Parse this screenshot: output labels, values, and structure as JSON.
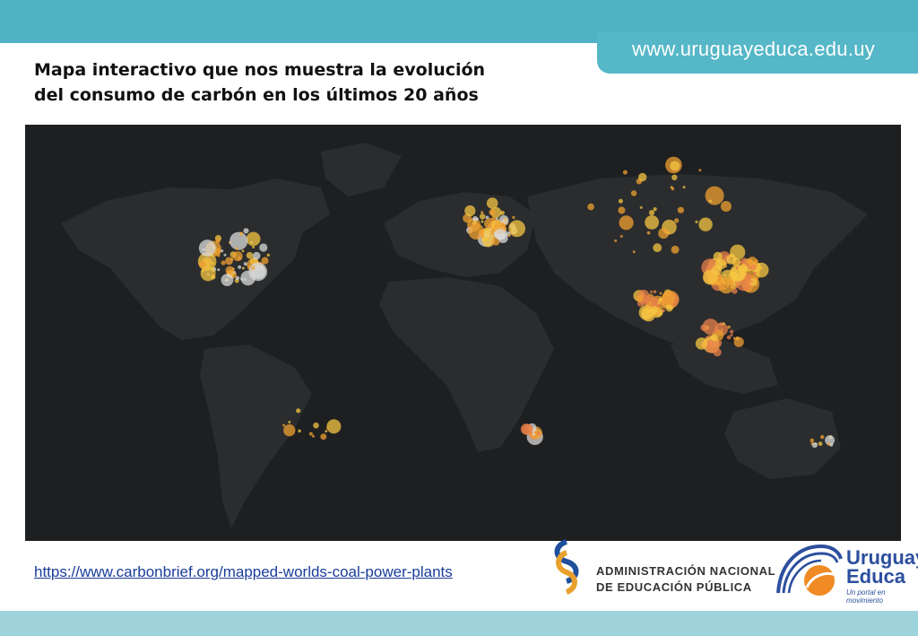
{
  "header": {
    "url": "www.uruguayeduca.edu.uy",
    "title_line1": "Mapa interactivo que nos muestra la evolución",
    "title_line2": "del consumo de carbón en los últimos 20 años"
  },
  "footer": {
    "link": "https://www.carbonbrief.org/mapped-worlds-coal-power-plants",
    "anep_line1": "ADMINISTRACIÓN NACIONAL",
    "anep_line2": "DE EDUCACIÓN PÚBLICA",
    "ue_line1": "Uruguay",
    "ue_line2": "Educa",
    "ue_tagline": "Un portal en movimiento"
  },
  "map": {
    "background_color": "#1e1f21",
    "land_color": "#2b2c2e",
    "dot_colors": [
      "#f5c542",
      "#f0a030",
      "#e8804a",
      "#d9d9d9"
    ],
    "clusters": [
      {
        "region": "north-america",
        "lon": -95,
        "lat": 38,
        "spread": 12,
        "count": 70,
        "palette": [
          0,
          1,
          3
        ]
      },
      {
        "region": "europe",
        "lon": 12,
        "lat": 50,
        "spread": 9,
        "count": 55,
        "palette": [
          0,
          1,
          3
        ]
      },
      {
        "region": "china",
        "lon": 112,
        "lat": 32,
        "spread": 9,
        "count": 80,
        "palette": [
          1,
          2,
          0
        ]
      },
      {
        "region": "india",
        "lon": 79,
        "lat": 21,
        "spread": 6,
        "count": 45,
        "palette": [
          1,
          2,
          0
        ]
      },
      {
        "region": "southeast-asia",
        "lon": 105,
        "lat": 8,
        "spread": 7,
        "count": 25,
        "palette": [
          0,
          1,
          2
        ]
      },
      {
        "region": "south-africa",
        "lon": 28,
        "lat": -26,
        "spread": 3,
        "count": 10,
        "palette": [
          1,
          2,
          3
        ]
      },
      {
        "region": "australia",
        "lon": 148,
        "lat": -30,
        "spread": 4,
        "count": 10,
        "palette": [
          3,
          0,
          1
        ]
      },
      {
        "region": "south-america",
        "lon": -62,
        "lat": -20,
        "spread": 10,
        "count": 12,
        "palette": [
          0,
          1
        ]
      },
      {
        "region": "russia",
        "lon": 80,
        "lat": 55,
        "spread": 22,
        "count": 35,
        "palette": [
          0,
          1
        ]
      }
    ]
  }
}
